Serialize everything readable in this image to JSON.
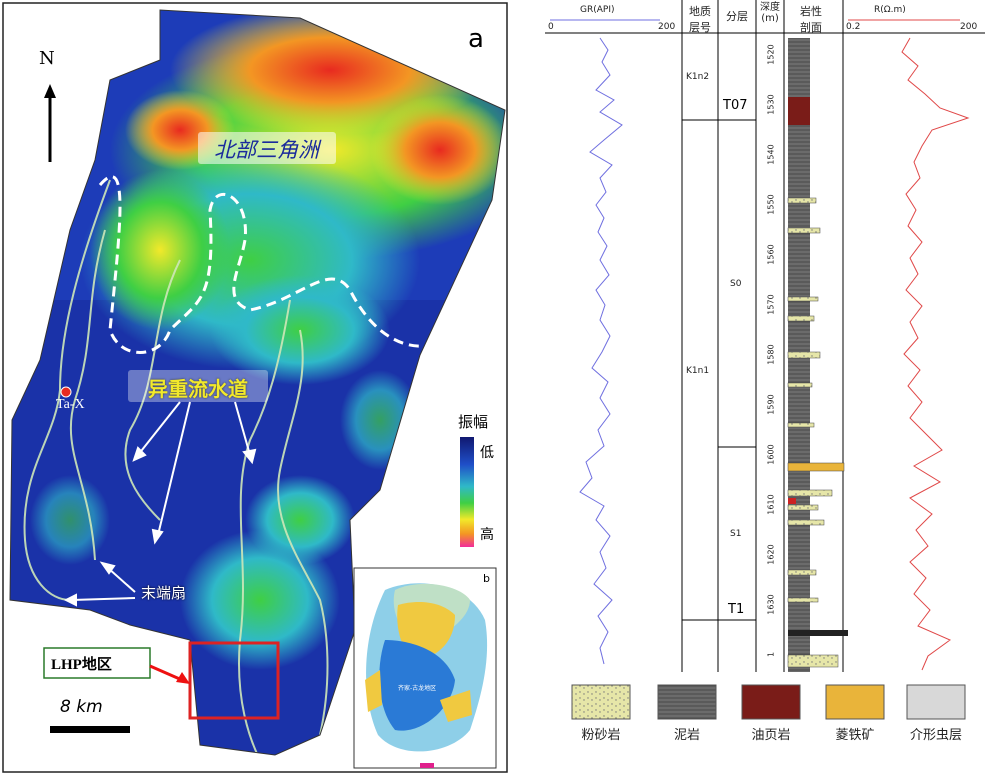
{
  "map": {
    "panel_label": "a",
    "north_label": "N",
    "region_label": "北部三角洲",
    "channel_label": "异重流水道",
    "fan_label": "末端扇",
    "well_label": "Ta-X",
    "area_label": "LHP地区",
    "scale_label": "8 km",
    "colorbar_title": "振幅",
    "colorbar_low": "低",
    "colorbar_high": "高",
    "colors": {
      "low": "#1a2a9c",
      "mid": "#2fb9c8",
      "green": "#3fcf44",
      "yellow": "#f2e92a",
      "orange": "#f39623",
      "high": "#f22d99",
      "red": "#e82a20"
    }
  },
  "inset": {
    "panel_label": "b",
    "basin_label": "齐家-古龙地区"
  },
  "log": {
    "gr_title": "GR(API)",
    "gr_min": "0",
    "gr_max": "200",
    "res_title": "R(Ω.m)",
    "res_min": "0.2",
    "res_max": "200",
    "col_layer": "地质层号",
    "col_zone": "分层",
    "col_depth": "深度(m)",
    "col_lith": "岩性剖面",
    "unit_upper": "K1n2",
    "unit_lower": "K1n1",
    "marker_t07": "T07",
    "marker_t1": "T1",
    "zone_s0": "S0",
    "zone_s1": "S1",
    "depths": [
      "1520",
      "1530",
      "1540",
      "1550",
      "1560",
      "1570",
      "1580",
      "1590",
      "1600",
      "1610",
      "1620",
      "1630",
      "1"
    ],
    "gr_color": "#6f6fe0",
    "res_color": "#e04848"
  },
  "legend": [
    {
      "label": "粉砂岩",
      "icon": "siltstone",
      "color": "#e6e6a8"
    },
    {
      "label": "泥岩",
      "icon": "mudstone",
      "color": "#6b6b6b"
    },
    {
      "label": "油页岩",
      "icon": "oil-shale",
      "color": "#7a1c18"
    },
    {
      "label": "菱铁矿",
      "icon": "siderite",
      "color": "#e9b43a"
    },
    {
      "label": "介形虫层",
      "icon": "ostracod-bed",
      "color": "#d8d8d8"
    }
  ]
}
